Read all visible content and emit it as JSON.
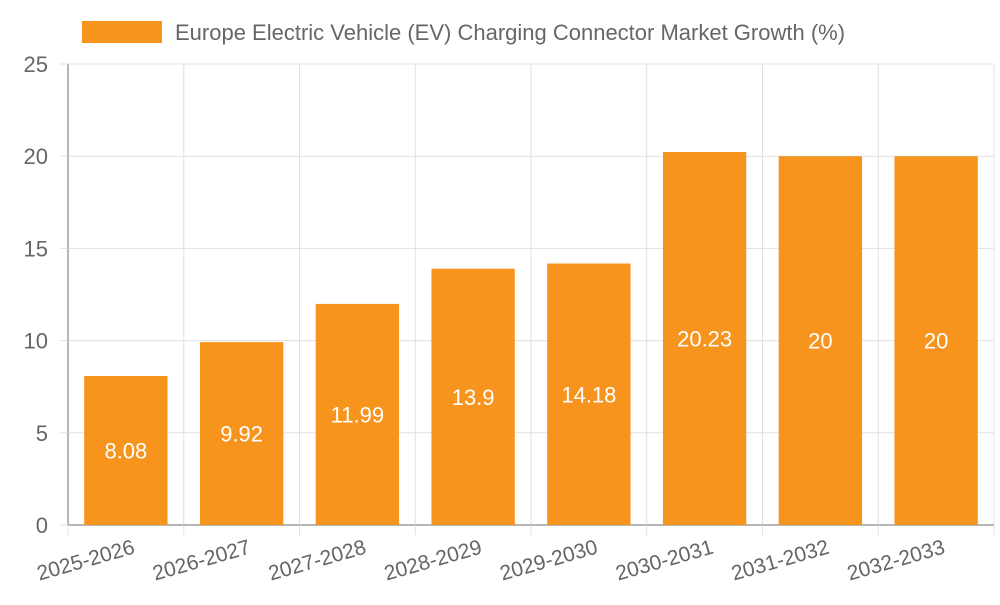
{
  "chart_data": {
    "type": "bar",
    "categories": [
      "2025-2026",
      "2026-2027",
      "2027-2028",
      "2028-2029",
      "2029-2030",
      "2030-2031",
      "2031-2032",
      "2032-2033"
    ],
    "series": [
      {
        "name": "Europe Electric Vehicle (EV) Charging Connector Market Growth (%)",
        "values": [
          8.08,
          9.92,
          11.99,
          13.9,
          14.18,
          20.23,
          20,
          20
        ],
        "color": "#f7941d"
      }
    ],
    "data_labels": [
      "8.08",
      "9.92",
      "11.99",
      "13.9",
      "14.18",
      "20.23",
      "20",
      "20"
    ],
    "y_ticks": [
      "0",
      "5",
      "10",
      "15",
      "20",
      "25"
    ],
    "ylim": [
      0,
      25
    ],
    "grid": true,
    "legend_position": "top-center",
    "colors": {
      "grid": "#e0e0e0",
      "axis": "#9e9e9e",
      "tick_text": "#666666",
      "legend_text": "#666666",
      "data_label": "#ffffff"
    }
  }
}
